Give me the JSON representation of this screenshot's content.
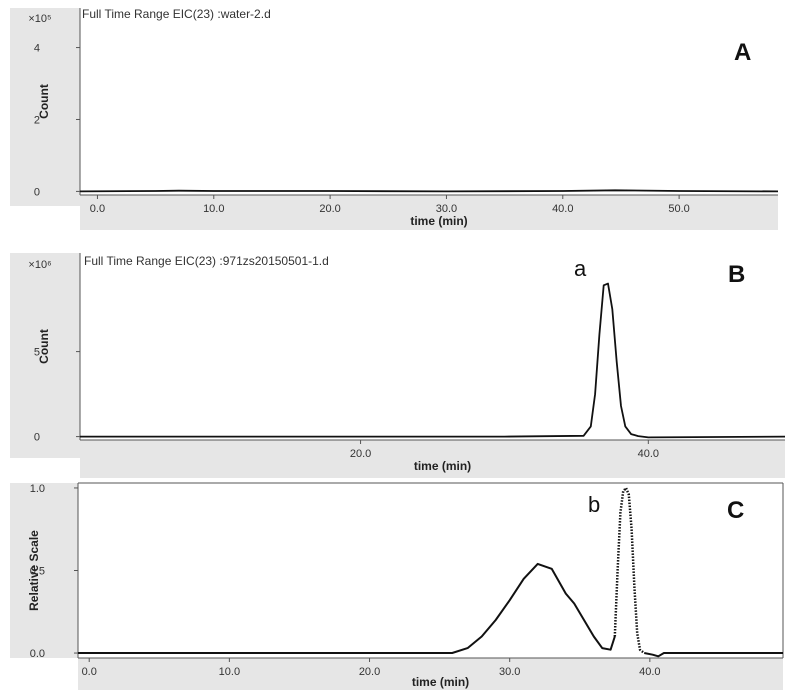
{
  "chart_data": [
    {
      "panel": "A",
      "type": "line",
      "title": "Full Time Range EIC(23) :water-2.d",
      "xlabel": "time (min)",
      "ylabel": "Count",
      "y_exponent": "×10⁵",
      "xlim": [
        -1.5,
        58.5
      ],
      "ylim": [
        -0.1,
        5.1
      ],
      "x_ticks": [
        "0.0",
        "10.0",
        "20.0",
        "30.0",
        "40.0",
        "50.0"
      ],
      "x_tick_values": [
        0,
        10,
        20,
        30,
        40,
        50
      ],
      "y_ticks": [
        "0",
        "2",
        "4"
      ],
      "y_tick_values": [
        0,
        2,
        4
      ],
      "series": [
        {
          "style": "solid",
          "x": [
            -1.5,
            5,
            7,
            10,
            20,
            30,
            40,
            44.5,
            50,
            58.5
          ],
          "y": [
            0,
            0.01,
            0.02,
            0.01,
            0.01,
            0,
            0.01,
            0.03,
            0.01,
            0
          ]
        }
      ]
    },
    {
      "panel": "B",
      "type": "line",
      "title": "Full Time Range EIC(23) :971zs20150501-1.d",
      "xlabel": "time (min)",
      "ylabel": "Count",
      "y_exponent": "×10⁶",
      "peak_label": "a",
      "xlim": [
        0.5,
        49.5
      ],
      "ylim": [
        -0.2,
        10.8
      ],
      "x_ticks": [
        "20.0",
        "40.0"
      ],
      "x_tick_values": [
        20,
        40
      ],
      "y_ticks": [
        "0",
        "5"
      ],
      "y_tick_values": [
        0,
        5
      ],
      "series": [
        {
          "style": "solid",
          "x": [
            0.5,
            10,
            20,
            30,
            35.5,
            36.0,
            36.3,
            36.6,
            36.9,
            37.2,
            37.5,
            37.8,
            38.1,
            38.4,
            38.8,
            39.3,
            40,
            49.5
          ],
          "y": [
            0,
            0,
            0,
            0,
            0.05,
            0.6,
            2.5,
            6.0,
            8.9,
            9.0,
            7.5,
            4.4,
            1.8,
            0.6,
            0.15,
            0.03,
            -0.05,
            0
          ]
        }
      ]
    },
    {
      "panel": "C",
      "type": "line",
      "title": "",
      "xlabel": "time (min)",
      "ylabel": "Relative Scale",
      "peak_label": "b",
      "xlim": [
        -0.8,
        49.5
      ],
      "ylim": [
        -0.03,
        1.03
      ],
      "x_ticks": [
        "0.0",
        "10.0",
        "20.0",
        "30.0",
        "40.0"
      ],
      "x_tick_values": [
        0,
        10,
        20,
        30,
        40
      ],
      "y_ticks": [
        "0.0",
        "0.5",
        "1.0"
      ],
      "y_tick_values": [
        0,
        0.5,
        1.0
      ],
      "series": [
        {
          "style": "solid",
          "x": [
            -0.8,
            10,
            20,
            25.9,
            27,
            28,
            29,
            30,
            31,
            32,
            33,
            34,
            34.6,
            35.3,
            36,
            36.6,
            37.2,
            37.5
          ],
          "y": [
            0,
            0,
            0,
            0,
            0.03,
            0.1,
            0.2,
            0.32,
            0.45,
            0.54,
            0.51,
            0.36,
            0.3,
            0.2,
            0.1,
            0.03,
            0.02,
            0.1
          ]
        },
        {
          "style": "dotted",
          "x": [
            37.5,
            37.7,
            37.9,
            38.1,
            38.3,
            38.5,
            38.7,
            38.9,
            39.1,
            39.3,
            39.6
          ],
          "y": [
            0.1,
            0.5,
            0.85,
            0.98,
            1.0,
            0.96,
            0.75,
            0.4,
            0.12,
            0.02,
            0
          ]
        },
        {
          "style": "solid",
          "x": [
            39.6,
            40.2,
            40.6,
            41,
            45,
            49.5
          ],
          "y": [
            0,
            -0.01,
            -0.02,
            0,
            0,
            0
          ]
        }
      ]
    }
  ]
}
